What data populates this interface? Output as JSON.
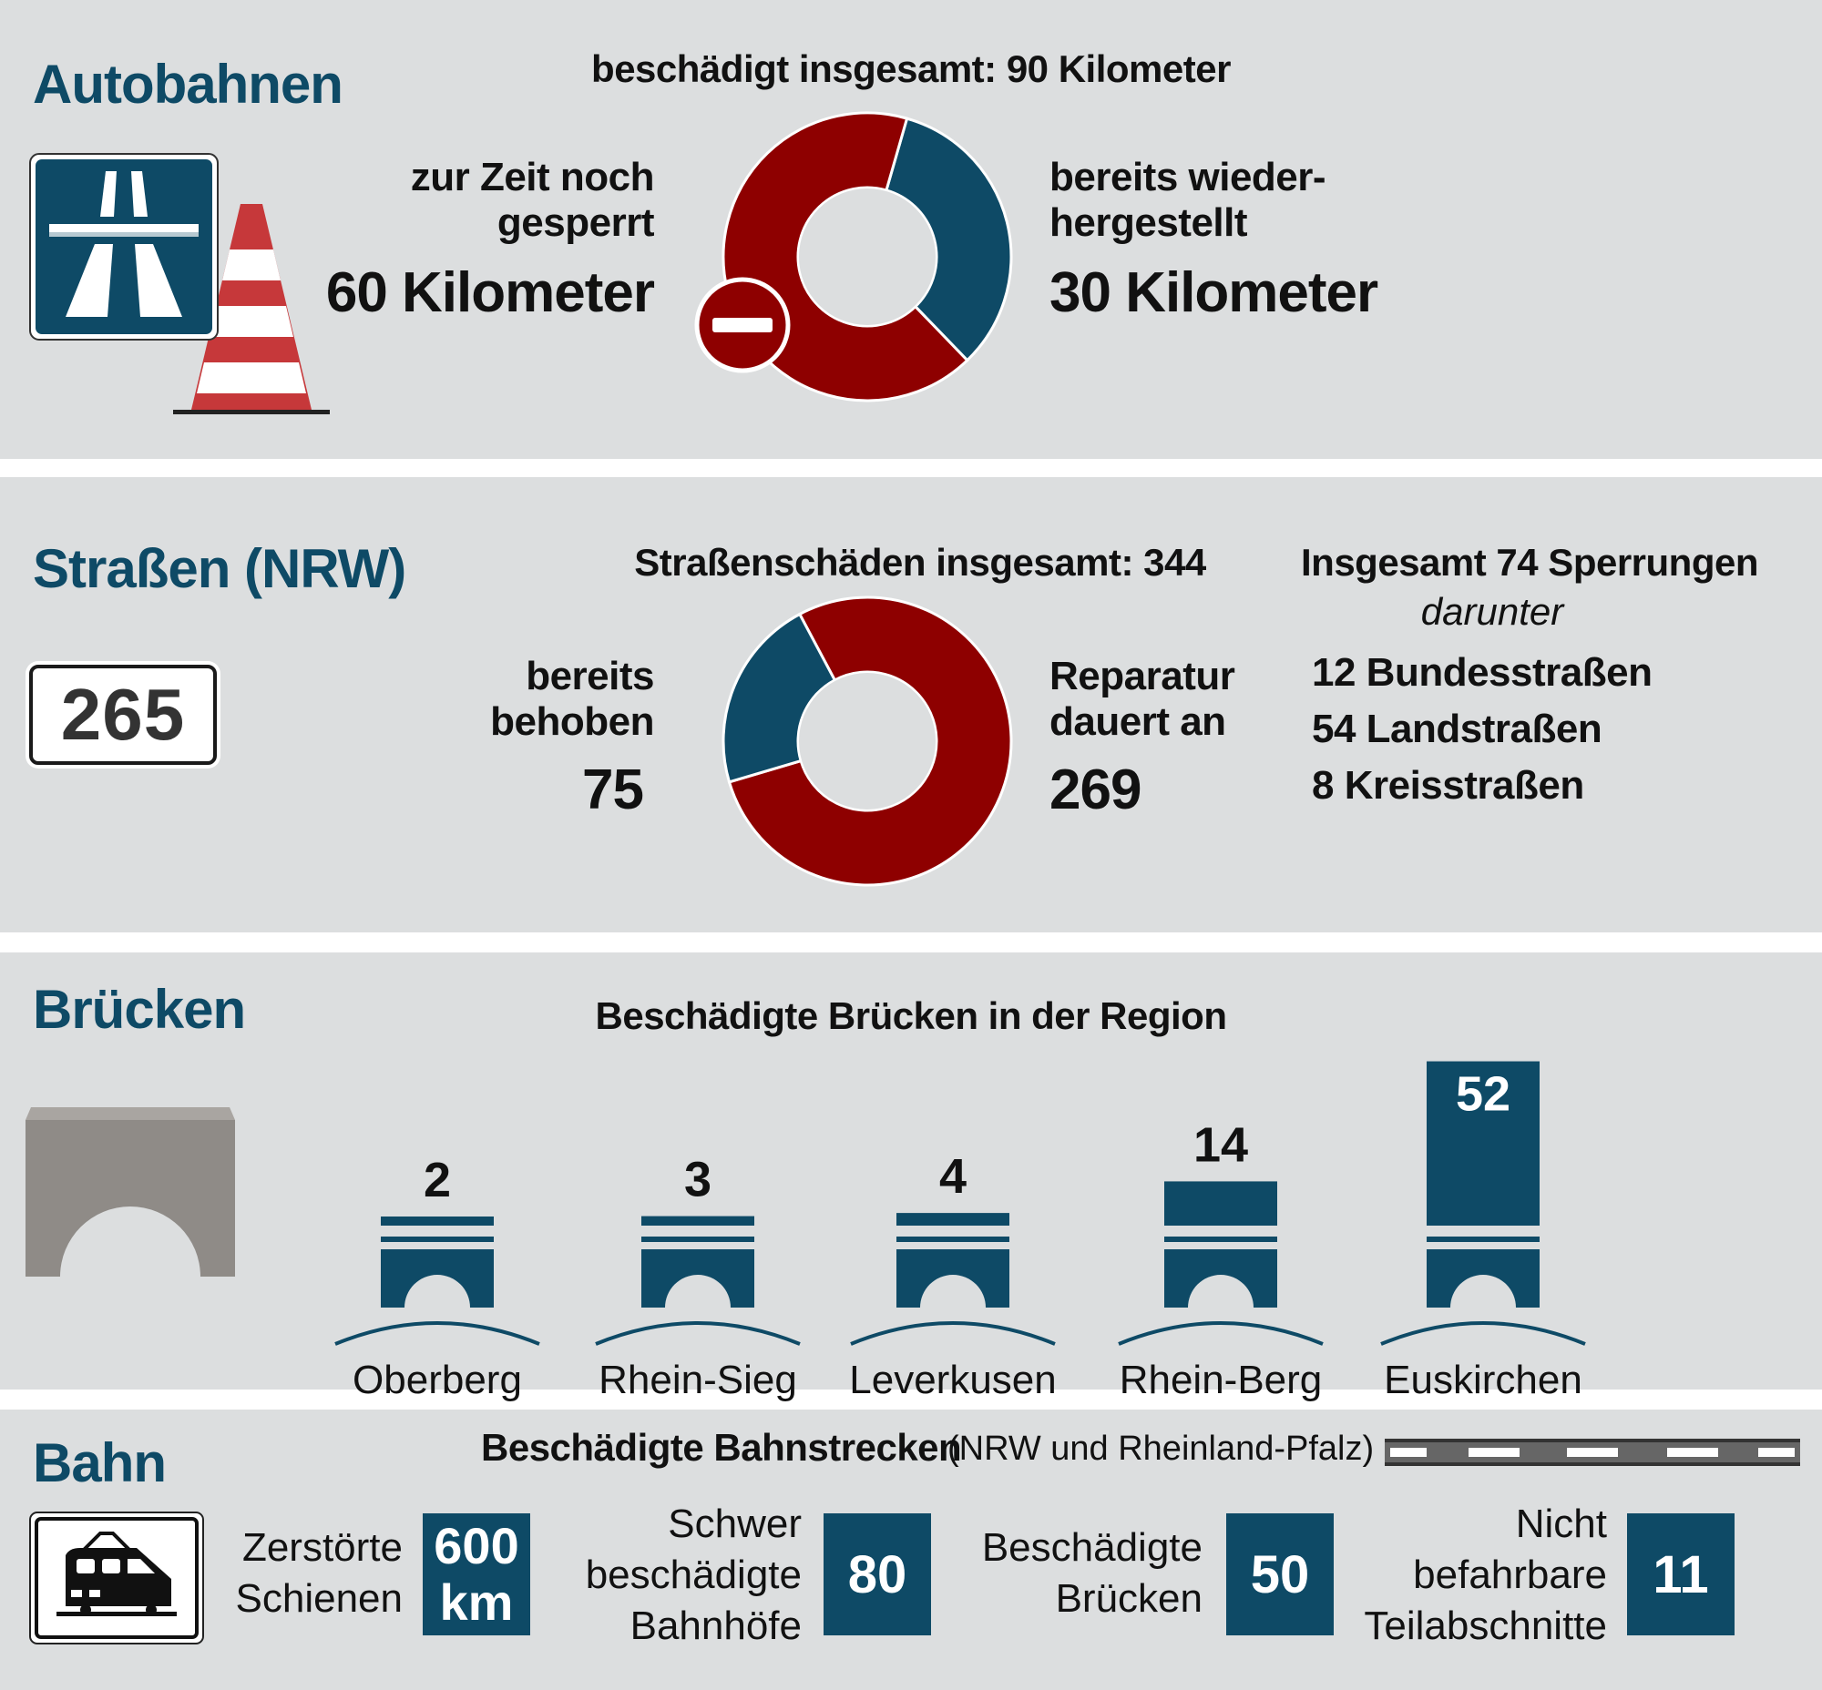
{
  "colors": {
    "title": "#0e4a66",
    "blue": "#0e4a66",
    "red": "#8e0000",
    "panel": "#dcdedf",
    "stone": "#8f8b87"
  },
  "autobahn": {
    "title": "Autobahnen",
    "icons": [
      "autobahn-sign-icon",
      "traffic-cone-icon",
      "no-entry-icon"
    ],
    "chart_title": "beschädigt insgesamt: 90 Kilometer",
    "left_label": [
      "zur Zeit noch",
      "gesperrt"
    ],
    "left_value": "60 Kilometer",
    "right_label": [
      "bereits wieder-",
      "hergestellt"
    ],
    "right_value": "30 Kilometer"
  },
  "strassen": {
    "title": "Straßen (NRW)",
    "sign_number": "265",
    "chart_title": "Straßenschäden insgesamt: 344",
    "left_label": [
      "bereits",
      "behoben"
    ],
    "left_value": "75",
    "right_label": [
      "Reparatur",
      "dauert an"
    ],
    "right_value": "269",
    "closures_title": "Insgesamt 74 Sperrungen",
    "closures_sub": "darunter",
    "closures": [
      "12 Bundesstraßen",
      "54 Landstraßen",
      "8 Kreisstraßen"
    ]
  },
  "bruecken": {
    "title": "Brücken",
    "chart_title": "Beschädigte Brücken in der Region",
    "icons": [
      "bridge-icon"
    ]
  },
  "bahn": {
    "title": "Bahn",
    "chart_title": "Beschädigte Bahnstrecken",
    "chart_subtitle": "(NRW und Rheinland-Pfalz)",
    "icons": [
      "train-sign-icon",
      "rail-track-icon"
    ],
    "stats": [
      {
        "label": [
          "Zerstörte",
          "Schienen"
        ],
        "value": [
          "600",
          "km"
        ]
      },
      {
        "label": [
          "Schwer",
          "beschädigte",
          "Bahnhöfe"
        ],
        "value": [
          "80"
        ]
      },
      {
        "label": [
          "Beschädigte",
          "Brücken"
        ],
        "value": [
          "50"
        ]
      },
      {
        "label": [
          "Nicht",
          "befahrbare",
          "Teilabschnitte"
        ],
        "value": [
          "11"
        ]
      }
    ]
  },
  "chart_data": [
    {
      "type": "pie",
      "title": "beschädigt insgesamt: 90 Kilometer",
      "donut": true,
      "slices": [
        {
          "label": "zur Zeit noch gesperrt",
          "value": 60,
          "color": "#8e0000"
        },
        {
          "label": "bereits wiederhergestellt",
          "value": 30,
          "color": "#0e4a66"
        }
      ]
    },
    {
      "type": "pie",
      "title": "Straßenschäden insgesamt: 344",
      "donut": true,
      "slices": [
        {
          "label": "bereits behoben",
          "value": 75,
          "color": "#0e4a66"
        },
        {
          "label": "Reparatur dauert an",
          "value": 269,
          "color": "#8e0000"
        }
      ]
    },
    {
      "type": "bar",
      "title": "Beschädigte Brücken in der Region",
      "categories": [
        "Oberberg",
        "Rhein-Sieg",
        "Leverkusen",
        "Rhein-Berg",
        "Euskirchen"
      ],
      "values": [
        2,
        3,
        4,
        14,
        52
      ]
    }
  ]
}
